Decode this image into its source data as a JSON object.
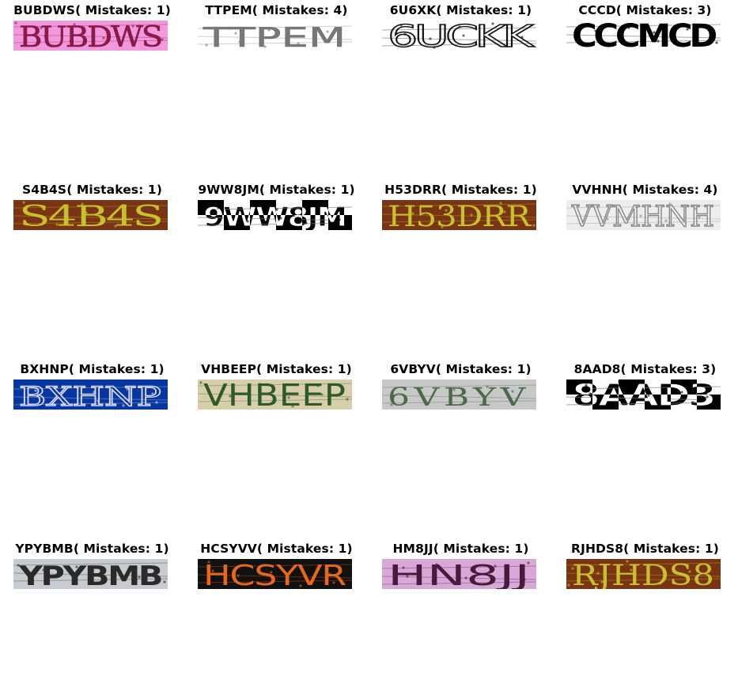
{
  "figure": {
    "panels": [
      {
        "title": "BUBDWS( Mistakes: 1)",
        "captcha_text": "BUBDWS",
        "background": "#f298dc",
        "ink": "#8a1a4a"
      },
      {
        "title": "TTPEM( Mistakes: 4)",
        "captcha_text": "TTPEM",
        "background": "#ffffff",
        "ink": "#777777"
      },
      {
        "title": "6U6XK( Mistakes: 1)",
        "captcha_text": "6UCKK",
        "background": "#ffffff",
        "ink": "#111111"
      },
      {
        "title": "CCCD( Mistakes: 3)",
        "captcha_text": "CCCMCD",
        "background": "#ffffff",
        "ink": "#000000"
      },
      {
        "title": "S4B4S( Mistakes: 1)",
        "captcha_text": "S4B4S",
        "background": "#7a3414",
        "ink": "#c8c22a"
      },
      {
        "title": "9WW8JM( Mistakes: 1)",
        "captcha_text": "9WW8JM",
        "background": "#ffffff",
        "ink": "#000000"
      },
      {
        "title": "H53DRR( Mistakes: 1)",
        "captcha_text": "H53DRR",
        "background": "#7a3414",
        "ink": "#c8c22a"
      },
      {
        "title": "VVHNH( Mistakes: 4)",
        "captcha_text": "VVMHNH",
        "background": "#eeeeee",
        "ink": "#888888"
      },
      {
        "title": "BXHNP( Mistakes: 1)",
        "captcha_text": "BXHNP",
        "background": "#0636a0",
        "ink": "#d8d8ff"
      },
      {
        "title": "VHBEEP( Mistakes: 1)",
        "captcha_text": "VHBEEP",
        "background": "#d8cfaa",
        "ink": "#2d5a2d"
      },
      {
        "title": "6VBYV( Mistakes: 1)",
        "captcha_text": "6VBYV",
        "background": "#c8c8c8",
        "ink": "#4a6a4a"
      },
      {
        "title": "8AAD8( Mistakes: 3)",
        "captcha_text": "8AAD3",
        "background": "#ffffff",
        "ink": "#000000"
      },
      {
        "title": "YPYBMB( Mistakes: 1)",
        "captcha_text": "YPYBMB",
        "background": "#c8ccd0",
        "ink": "#2a2a2a"
      },
      {
        "title": "HCSYVV( Mistakes: 1)",
        "captcha_text": "HCSYVR",
        "background": "#111111",
        "ink": "#e8681a"
      },
      {
        "title": "HM8JJ( Mistakes: 1)",
        "captcha_text": "HN8JJ",
        "background": "#d7a8d8",
        "ink": "#4a1a3a"
      },
      {
        "title": "RJHDS8( Mistakes: 1)",
        "captcha_text": "RJHDS8",
        "background": "#7a3414",
        "ink": "#c8c22a"
      }
    ]
  }
}
